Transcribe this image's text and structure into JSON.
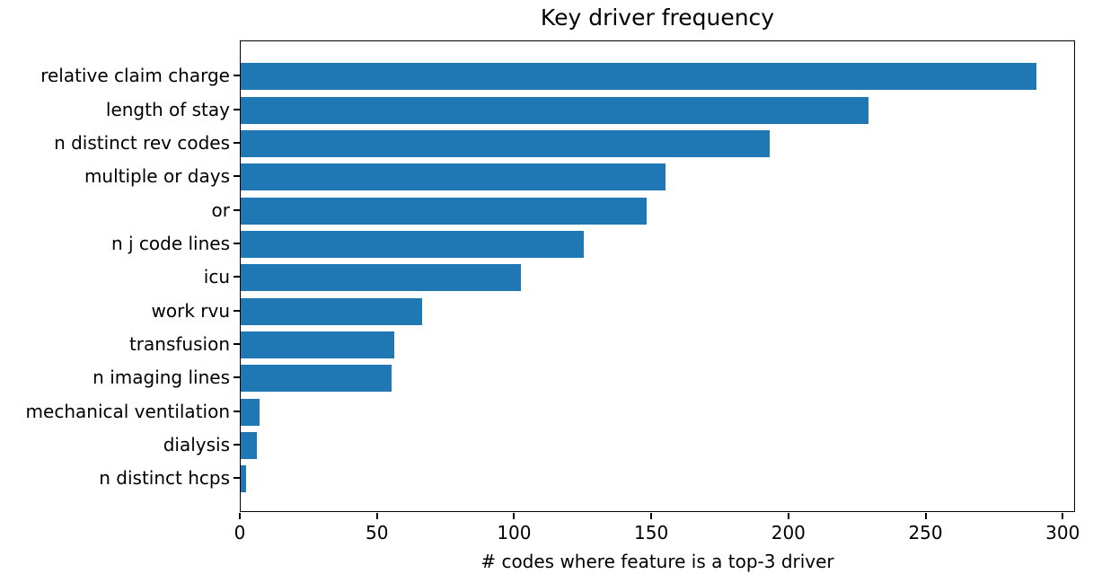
{
  "figure": {
    "background": "#ffffff"
  },
  "chart_data": {
    "type": "bar",
    "orientation": "horizontal",
    "title": "Key driver frequency",
    "xlabel": "# codes where feature is a top-3 driver",
    "ylabel": "",
    "categories": [
      "relative claim charge",
      "length of stay",
      "n distinct rev codes",
      "multiple or days",
      "or",
      "n j code lines",
      "icu",
      "work rvu",
      "transfusion",
      "n imaging lines",
      "mechanical ventilation",
      "dialysis",
      "n distinct hcps"
    ],
    "values": [
      290,
      229,
      193,
      155,
      148,
      125,
      102,
      66,
      56,
      55,
      7,
      6,
      2
    ],
    "xticks": [
      0,
      50,
      100,
      150,
      200,
      250,
      300
    ],
    "xtick_labels": [
      "0",
      "50",
      "100",
      "150",
      "200",
      "250",
      "300"
    ],
    "xlim": [
      0,
      304.5
    ],
    "grid": false,
    "legend": null,
    "bar_color": "#1f77b4",
    "axis_color": "#000000",
    "text_color": "#000000"
  }
}
